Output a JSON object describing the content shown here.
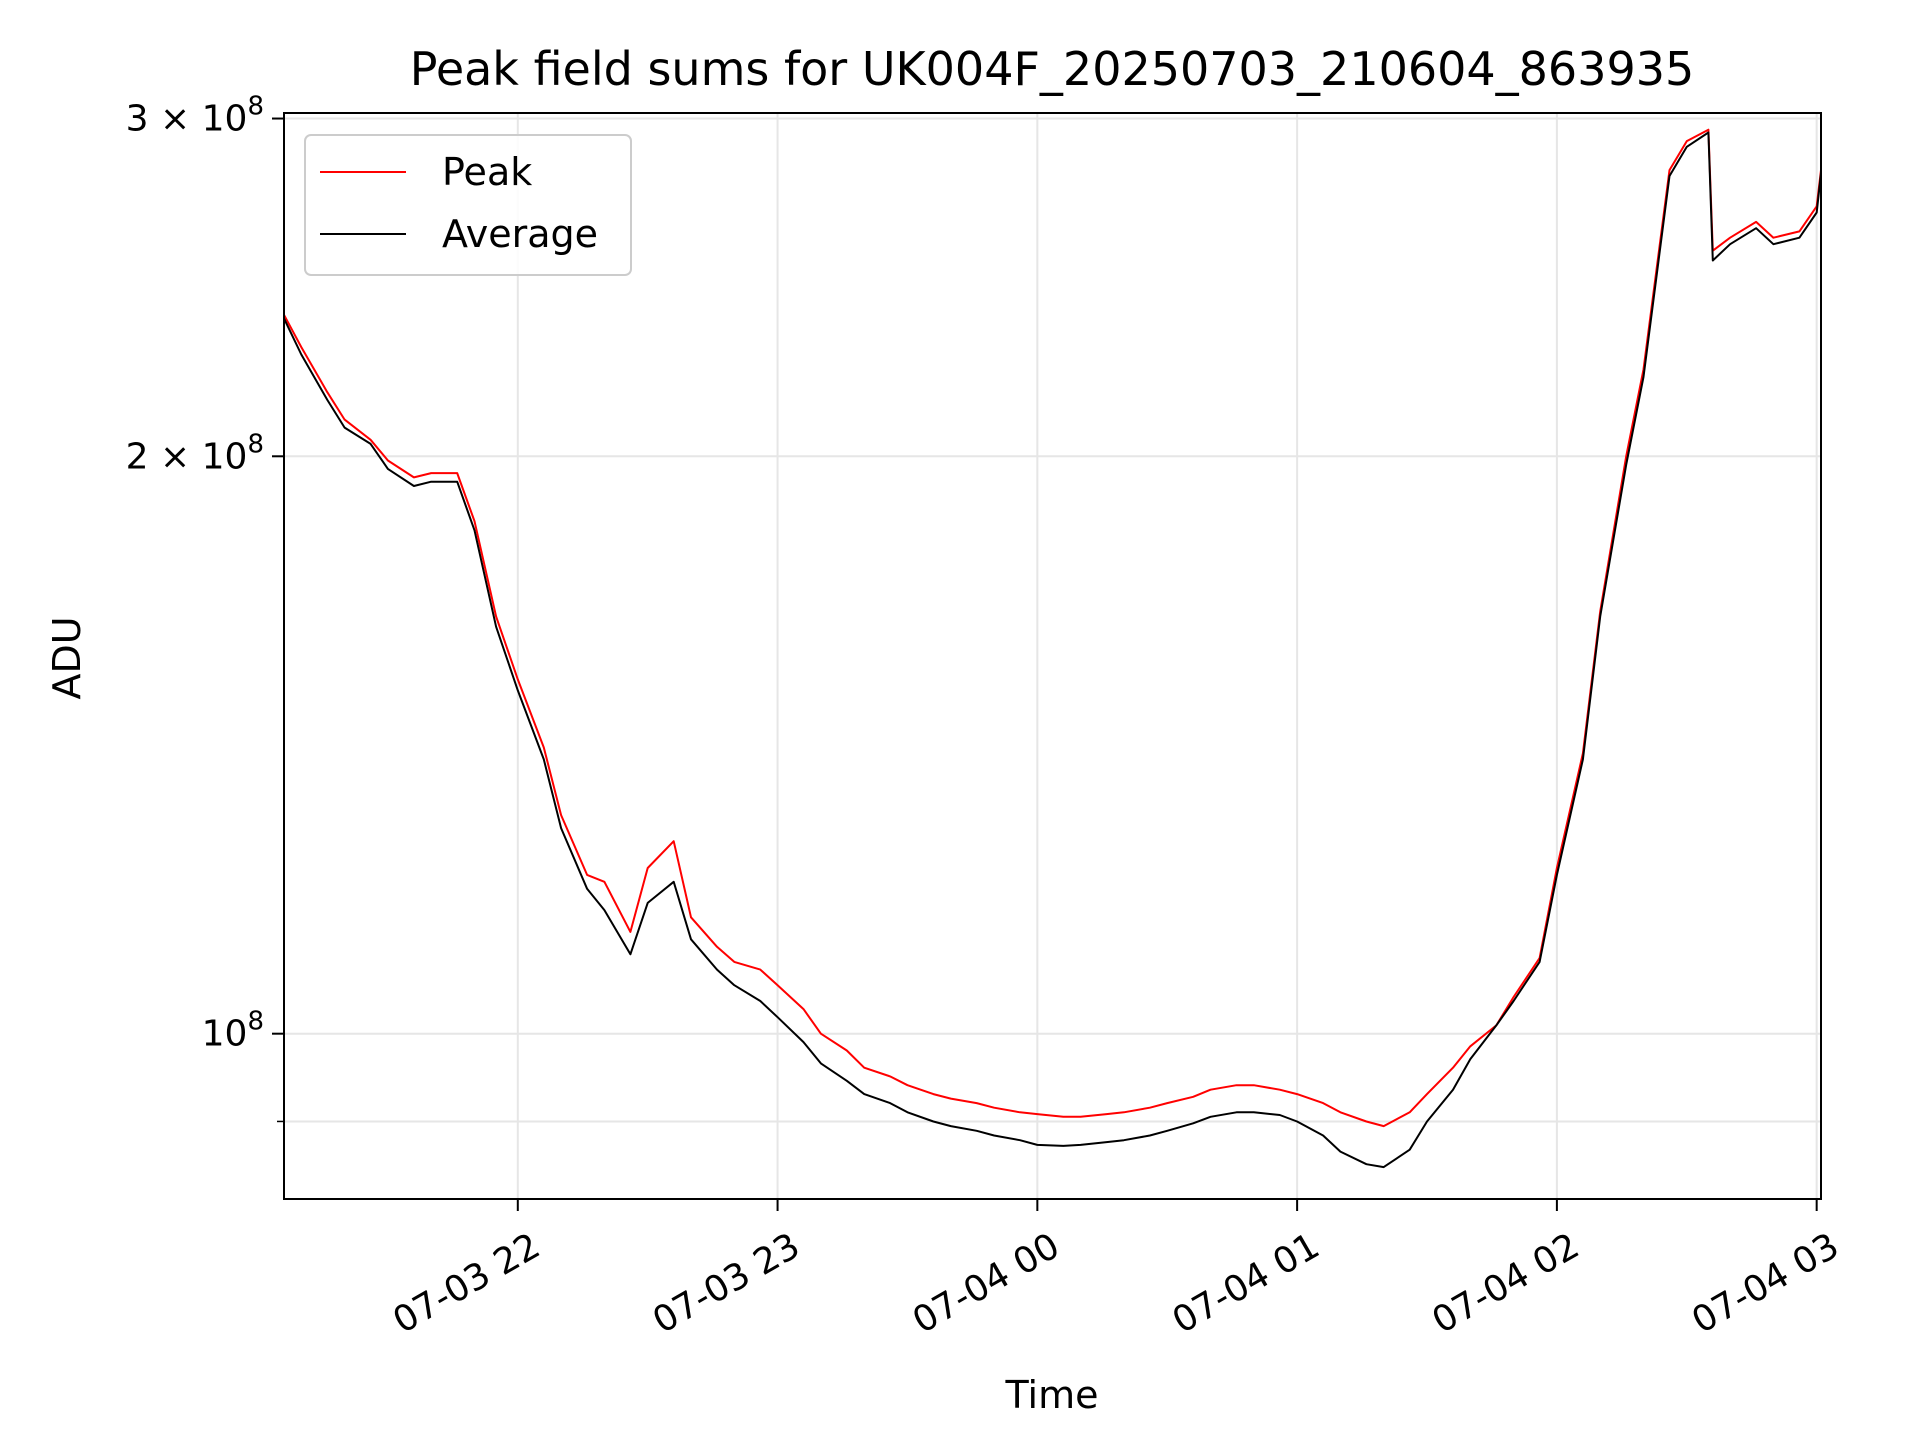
{
  "chart_data": {
    "type": "line",
    "title": "Peak field sums for UK004F_20250703_210604_863935",
    "xlabel": "Time",
    "ylabel": "ADU",
    "y_scale": "log",
    "ylim": [
      82000000,
      302000000
    ],
    "xlim": [
      "2025-07-03T21:06",
      "2025-07-04T03:01"
    ],
    "grid": true,
    "legend_position": "upper-left",
    "x_ticks": [
      {
        "value": "2025-07-03T22:00",
        "label": "07-03 22"
      },
      {
        "value": "2025-07-03T23:00",
        "label": "07-03 23"
      },
      {
        "value": "2025-07-04T00:00",
        "label": "07-04 00"
      },
      {
        "value": "2025-07-04T01:00",
        "label": "07-04 01"
      },
      {
        "value": "2025-07-04T02:00",
        "label": "07-04 02"
      },
      {
        "value": "2025-07-04T03:00",
        "label": "07-04 03"
      }
    ],
    "y_ticks": [
      {
        "value": 100000000,
        "base": "10",
        "exponent": "8"
      },
      {
        "value": 200000000,
        "mant": "2",
        "times": "×",
        "base": "10",
        "exponent": "8"
      },
      {
        "value": 300000000,
        "mant": "3",
        "times": "×",
        "base": "10",
        "exponent": "8"
      }
    ],
    "y_minor_ticks": [
      90000000
    ],
    "series": [
      {
        "name": "Peak",
        "color": "#ff0000",
        "x": [
          "2025-07-03T21:06",
          "2025-07-03T21:10",
          "2025-07-03T21:16",
          "2025-07-03T21:20",
          "2025-07-03T21:26",
          "2025-07-03T21:30",
          "2025-07-03T21:36",
          "2025-07-03T21:40",
          "2025-07-03T21:46",
          "2025-07-03T21:50",
          "2025-07-03T21:55",
          "2025-07-03T22:00",
          "2025-07-03T22:06",
          "2025-07-03T22:10",
          "2025-07-03T22:16",
          "2025-07-03T22:20",
          "2025-07-03T22:26",
          "2025-07-03T22:30",
          "2025-07-03T22:36",
          "2025-07-03T22:40",
          "2025-07-03T22:46",
          "2025-07-03T22:50",
          "2025-07-03T22:56",
          "2025-07-03T23:00",
          "2025-07-03T23:06",
          "2025-07-03T23:10",
          "2025-07-03T23:16",
          "2025-07-03T23:20",
          "2025-07-03T23:26",
          "2025-07-03T23:30",
          "2025-07-03T23:36",
          "2025-07-03T23:40",
          "2025-07-03T23:46",
          "2025-07-03T23:50",
          "2025-07-03T23:56",
          "2025-07-04T00:00",
          "2025-07-04T00:06",
          "2025-07-04T00:10",
          "2025-07-04T00:16",
          "2025-07-04T00:20",
          "2025-07-04T00:26",
          "2025-07-04T00:30",
          "2025-07-04T00:36",
          "2025-07-04T00:40",
          "2025-07-04T00:46",
          "2025-07-04T00:50",
          "2025-07-04T00:56",
          "2025-07-04T01:00",
          "2025-07-04T01:06",
          "2025-07-04T01:10",
          "2025-07-04T01:16",
          "2025-07-04T01:20",
          "2025-07-04T01:26",
          "2025-07-04T01:30",
          "2025-07-04T01:36",
          "2025-07-04T01:40",
          "2025-07-04T01:46",
          "2025-07-04T01:50",
          "2025-07-04T01:56",
          "2025-07-04T02:00",
          "2025-07-04T02:06",
          "2025-07-04T02:10",
          "2025-07-04T02:16",
          "2025-07-04T02:20",
          "2025-07-04T02:26",
          "2025-07-04T02:30",
          "2025-07-04T02:35",
          "2025-07-04T02:36",
          "2025-07-04T02:40",
          "2025-07-04T02:46",
          "2025-07-04T02:50",
          "2025-07-04T02:56",
          "2025-07-04T03:00",
          "2025-07-04T03:01"
        ],
        "values": [
          237000000,
          228000000,
          216000000,
          209000000,
          204000000,
          199000000,
          195000000,
          196000000,
          196000000,
          185000000,
          165000000,
          153000000,
          141000000,
          130000000,
          121000000,
          120000000,
          113000000,
          122000000,
          126000000,
          115000000,
          111000000,
          109000000,
          108000000,
          106000000,
          103000000,
          100000000,
          98000000,
          96000000,
          95000000,
          94000000,
          93000000,
          92500000,
          92000000,
          91500000,
          91000000,
          90800000,
          90500000,
          90500000,
          90800000,
          91000000,
          91500000,
          92000000,
          92700000,
          93500000,
          94000000,
          94000000,
          93500000,
          93000000,
          92000000,
          91000000,
          90000000,
          89500000,
          91000000,
          93000000,
          96000000,
          98500000,
          101000000,
          104500000,
          109500000,
          122000000,
          140000000,
          166000000,
          200000000,
          222000000,
          282000000,
          292000000,
          296000000,
          256000000,
          260000000,
          265000000,
          260000000,
          262000000,
          270000000,
          282000000
        ]
      },
      {
        "name": "Average",
        "color": "#000000",
        "x": [
          "2025-07-03T21:06",
          "2025-07-03T21:10",
          "2025-07-03T21:16",
          "2025-07-03T21:20",
          "2025-07-03T21:26",
          "2025-07-03T21:30",
          "2025-07-03T21:36",
          "2025-07-03T21:40",
          "2025-07-03T21:46",
          "2025-07-03T21:50",
          "2025-07-03T21:55",
          "2025-07-03T22:00",
          "2025-07-03T22:06",
          "2025-07-03T22:10",
          "2025-07-03T22:16",
          "2025-07-03T22:20",
          "2025-07-03T22:26",
          "2025-07-03T22:30",
          "2025-07-03T22:36",
          "2025-07-03T22:40",
          "2025-07-03T22:46",
          "2025-07-03T22:50",
          "2025-07-03T22:56",
          "2025-07-03T23:00",
          "2025-07-03T23:06",
          "2025-07-03T23:10",
          "2025-07-03T23:16",
          "2025-07-03T23:20",
          "2025-07-03T23:26",
          "2025-07-03T23:30",
          "2025-07-03T23:36",
          "2025-07-03T23:40",
          "2025-07-03T23:46",
          "2025-07-03T23:50",
          "2025-07-03T23:56",
          "2025-07-04T00:00",
          "2025-07-04T00:06",
          "2025-07-04T00:10",
          "2025-07-04T00:16",
          "2025-07-04T00:20",
          "2025-07-04T00:26",
          "2025-07-04T00:30",
          "2025-07-04T00:36",
          "2025-07-04T00:40",
          "2025-07-04T00:46",
          "2025-07-04T00:50",
          "2025-07-04T00:56",
          "2025-07-04T01:00",
          "2025-07-04T01:06",
          "2025-07-04T01:10",
          "2025-07-04T01:16",
          "2025-07-04T01:20",
          "2025-07-04T01:26",
          "2025-07-04T01:30",
          "2025-07-04T01:36",
          "2025-07-04T01:40",
          "2025-07-04T01:46",
          "2025-07-04T01:50",
          "2025-07-04T01:56",
          "2025-07-04T02:00",
          "2025-07-04T02:06",
          "2025-07-04T02:10",
          "2025-07-04T02:16",
          "2025-07-04T02:20",
          "2025-07-04T02:26",
          "2025-07-04T02:30",
          "2025-07-04T02:35",
          "2025-07-04T02:36",
          "2025-07-04T02:40",
          "2025-07-04T02:46",
          "2025-07-04T02:50",
          "2025-07-04T02:56",
          "2025-07-04T03:00",
          "2025-07-04T03:01"
        ],
        "values": [
          236000000,
          226000000,
          214000000,
          207000000,
          203000000,
          197000000,
          193000000,
          194000000,
          194000000,
          183000000,
          163000000,
          151000000,
          139000000,
          128000000,
          119000000,
          116000000,
          110000000,
          117000000,
          120000000,
          112000000,
          108000000,
          106000000,
          104000000,
          102000000,
          99000000,
          96500000,
          94500000,
          93000000,
          92000000,
          91000000,
          90000000,
          89500000,
          89000000,
          88500000,
          88000000,
          87500000,
          87400000,
          87500000,
          87800000,
          88000000,
          88500000,
          89000000,
          89800000,
          90500000,
          91000000,
          91000000,
          90700000,
          90000000,
          88500000,
          86800000,
          85500000,
          85200000,
          87000000,
          90000000,
          93500000,
          97000000,
          101000000,
          104000000,
          109000000,
          121000000,
          139000000,
          165000000,
          198000000,
          220000000,
          280000000,
          290000000,
          295000000,
          253000000,
          258000000,
          263000000,
          258000000,
          260000000,
          268000000,
          281000000
        ]
      }
    ]
  }
}
